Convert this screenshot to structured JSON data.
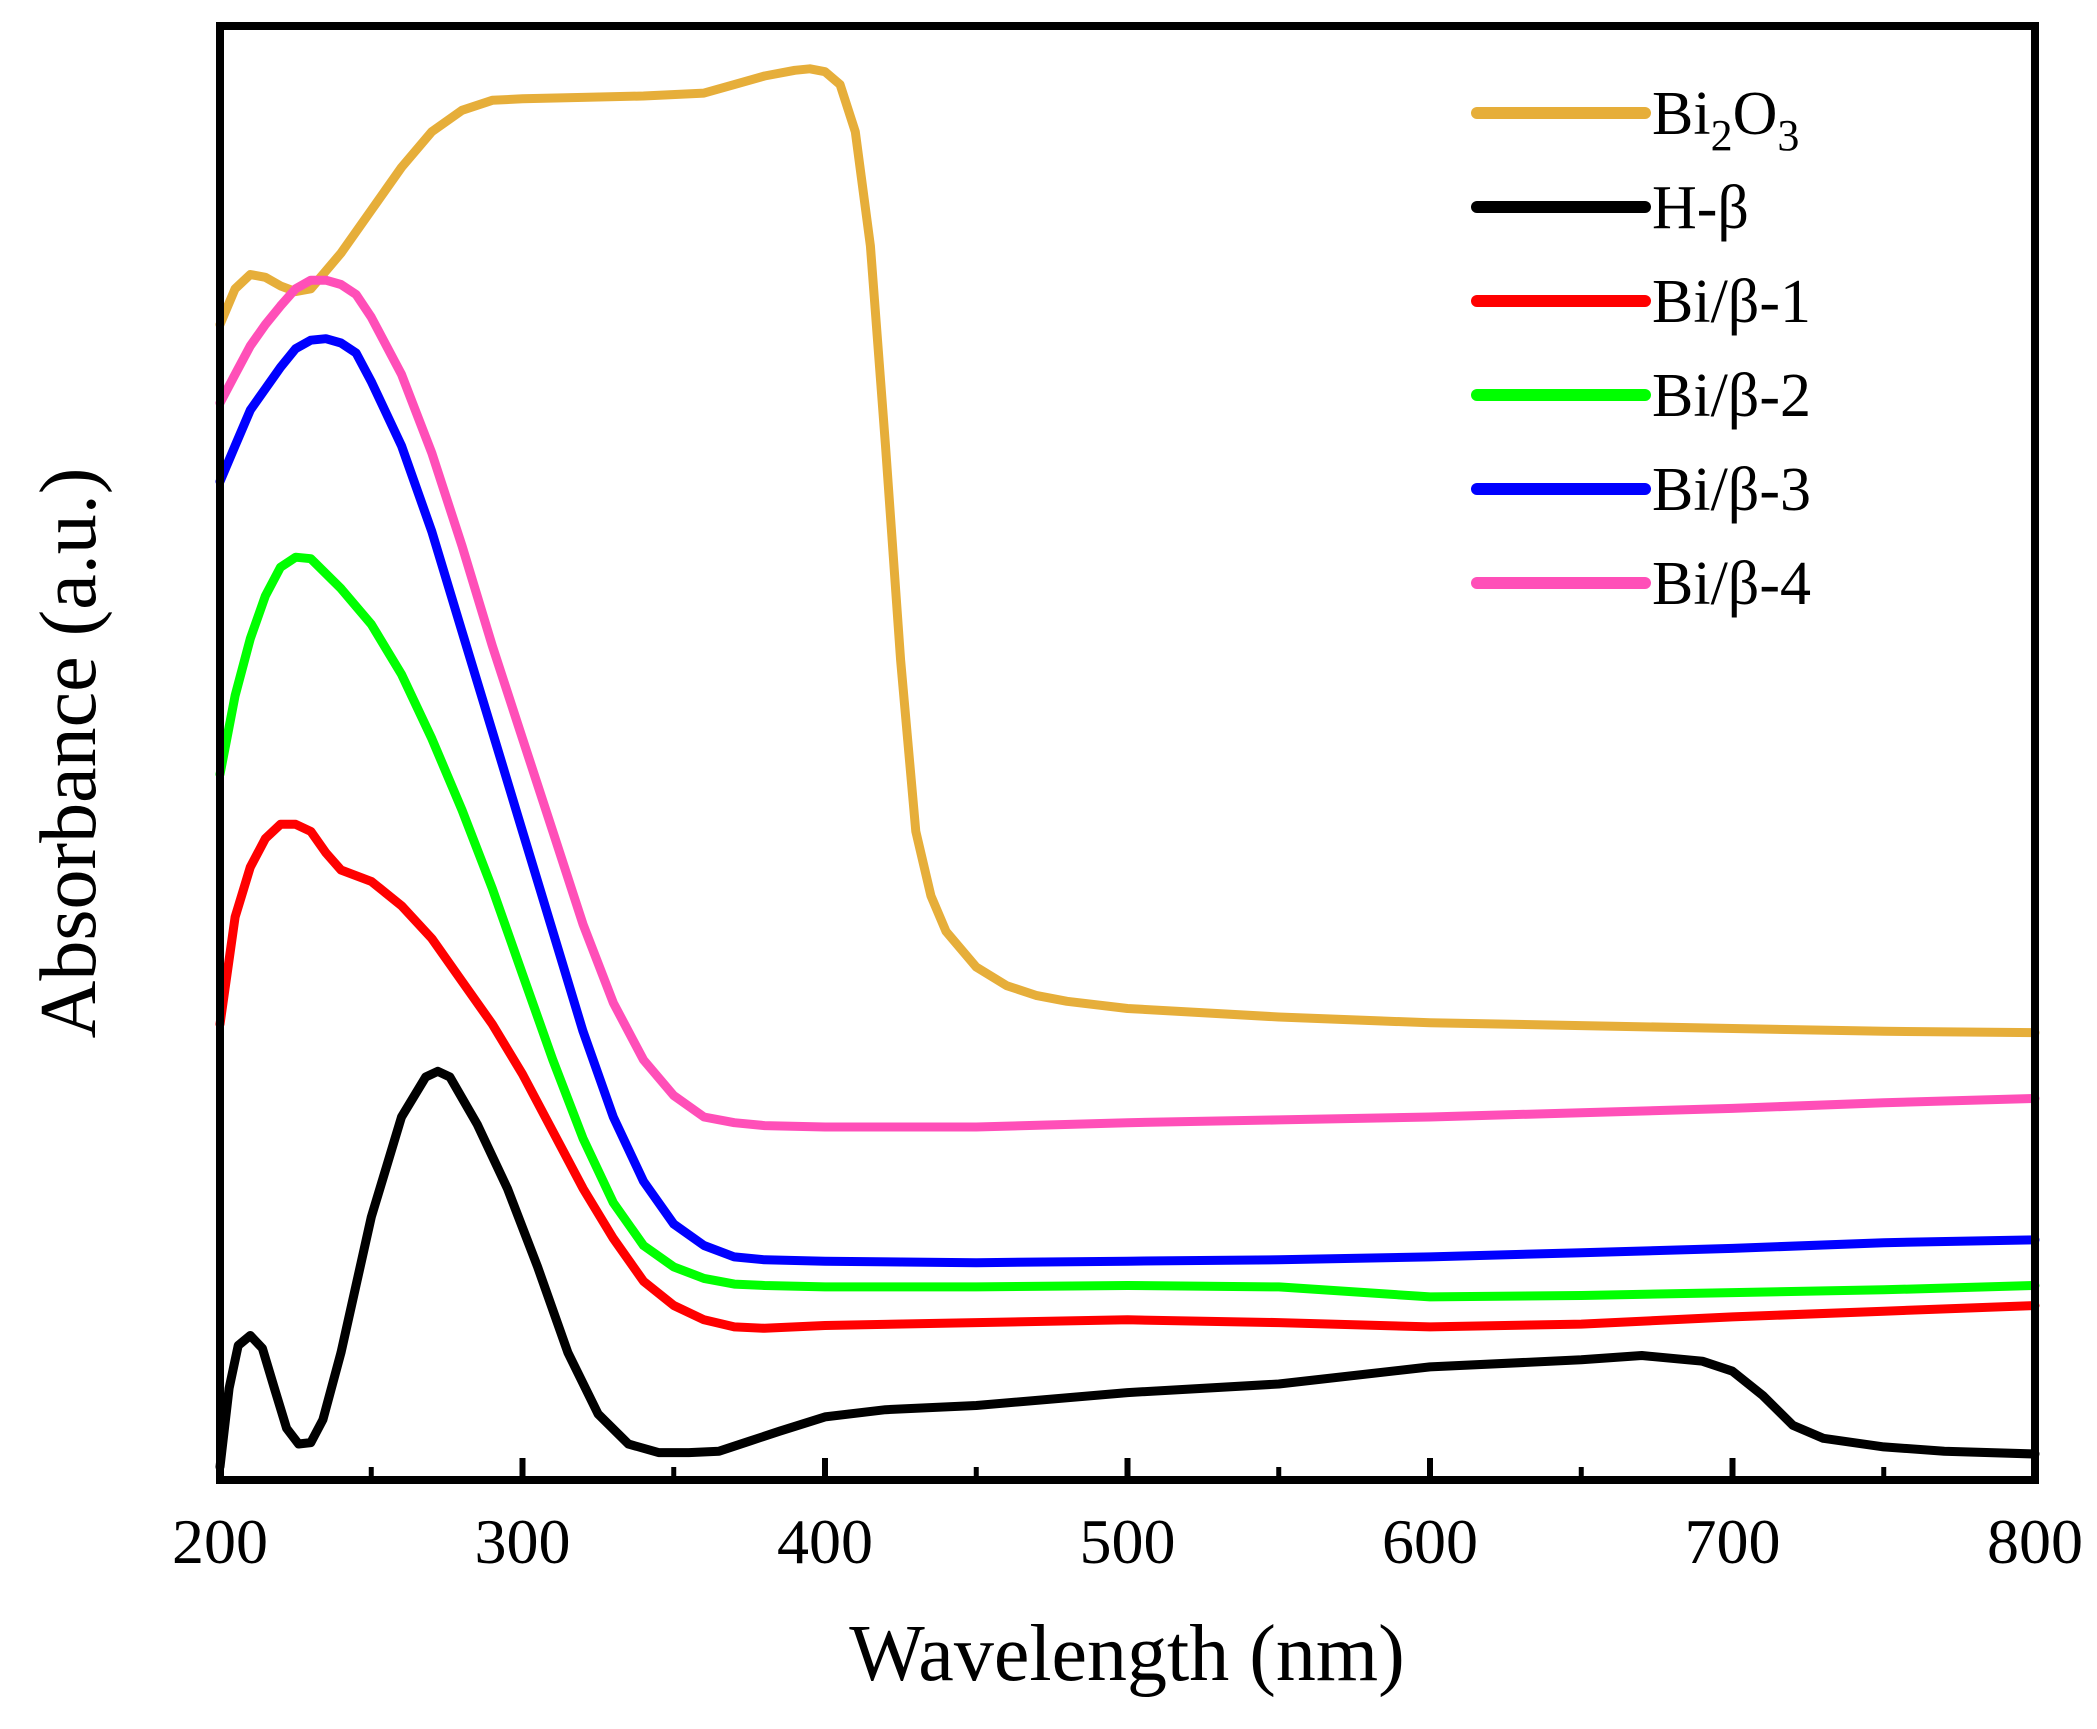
{
  "chart_data": {
    "type": "line",
    "title": "",
    "xlabel": "Wavelength (nm)",
    "ylabel": "Absorbance (a.u.)",
    "xlim": [
      200,
      800
    ],
    "ylim": [
      0,
      100
    ],
    "x_ticks": [
      "200",
      "300",
      "400",
      "500",
      "600",
      "700",
      "800"
    ],
    "y_ticks_visible": false,
    "grid": false,
    "legend_position": "top-right",
    "series": [
      {
        "name": "Bi2O3",
        "label_base": "Bi",
        "label_sub1": "2",
        "label_mid": "O",
        "label_sub2": "3",
        "color": "#E6AE3A",
        "points": [
          [
            200,
            80.5
          ],
          [
            205,
            83
          ],
          [
            210,
            84
          ],
          [
            215,
            83.8
          ],
          [
            220,
            83.2
          ],
          [
            225,
            82.8
          ],
          [
            230,
            83
          ],
          [
            240,
            85.5
          ],
          [
            250,
            88.5
          ],
          [
            260,
            91.5
          ],
          [
            270,
            94
          ],
          [
            280,
            95.5
          ],
          [
            290,
            96.2
          ],
          [
            300,
            96.3
          ],
          [
            320,
            96.4
          ],
          [
            340,
            96.5
          ],
          [
            360,
            96.7
          ],
          [
            370,
            97.3
          ],
          [
            380,
            97.9
          ],
          [
            390,
            98.3
          ],
          [
            395,
            98.4
          ],
          [
            400,
            98.2
          ],
          [
            405,
            97.3
          ],
          [
            410,
            94
          ],
          [
            415,
            86
          ],
          [
            420,
            72
          ],
          [
            425,
            57
          ],
          [
            430,
            45
          ],
          [
            435,
            40.5
          ],
          [
            440,
            38
          ],
          [
            450,
            35.5
          ],
          [
            460,
            34.2
          ],
          [
            470,
            33.5
          ],
          [
            480,
            33.1
          ],
          [
            500,
            32.6
          ],
          [
            550,
            32
          ],
          [
            600,
            31.6
          ],
          [
            650,
            31.4
          ],
          [
            700,
            31.2
          ],
          [
            750,
            31
          ],
          [
            800,
            30.9
          ]
        ]
      },
      {
        "name": "H-β",
        "color": "#000000",
        "points": [
          [
            200,
            0.5
          ],
          [
            203,
            6
          ],
          [
            206,
            9
          ],
          [
            210,
            9.7
          ],
          [
            214,
            8.8
          ],
          [
            218,
            6
          ],
          [
            222,
            3.2
          ],
          [
            226,
            2.1
          ],
          [
            230,
            2.2
          ],
          [
            234,
            3.8
          ],
          [
            240,
            8.5
          ],
          [
            250,
            18
          ],
          [
            260,
            25
          ],
          [
            268,
            27.8
          ],
          [
            272,
            28.2
          ],
          [
            276,
            27.8
          ],
          [
            285,
            24.5
          ],
          [
            295,
            20
          ],
          [
            305,
            14.5
          ],
          [
            315,
            8.5
          ],
          [
            325,
            4.2
          ],
          [
            335,
            2.1
          ],
          [
            345,
            1.5
          ],
          [
            355,
            1.5
          ],
          [
            365,
            1.6
          ],
          [
            375,
            2.3
          ],
          [
            385,
            3
          ],
          [
            400,
            4
          ],
          [
            420,
            4.5
          ],
          [
            450,
            4.8
          ],
          [
            500,
            5.7
          ],
          [
            550,
            6.3
          ],
          [
            600,
            7.5
          ],
          [
            650,
            8
          ],
          [
            670,
            8.3
          ],
          [
            690,
            7.9
          ],
          [
            700,
            7.2
          ],
          [
            710,
            5.5
          ],
          [
            720,
            3.4
          ],
          [
            730,
            2.5
          ],
          [
            750,
            1.9
          ],
          [
            770,
            1.6
          ],
          [
            800,
            1.4
          ]
        ]
      },
      {
        "name": "Bi/β-1",
        "color": "#FF0000",
        "points": [
          [
            200,
            31.5
          ],
          [
            205,
            39
          ],
          [
            210,
            42.5
          ],
          [
            215,
            44.5
          ],
          [
            220,
            45.5
          ],
          [
            225,
            45.5
          ],
          [
            230,
            45
          ],
          [
            235,
            43.5
          ],
          [
            240,
            42.3
          ],
          [
            250,
            41.5
          ],
          [
            260,
            39.8
          ],
          [
            270,
            37.5
          ],
          [
            280,
            34.5
          ],
          [
            290,
            31.5
          ],
          [
            300,
            28
          ],
          [
            310,
            24
          ],
          [
            320,
            20
          ],
          [
            330,
            16.5
          ],
          [
            340,
            13.5
          ],
          [
            350,
            11.8
          ],
          [
            360,
            10.8
          ],
          [
            370,
            10.3
          ],
          [
            380,
            10.2
          ],
          [
            400,
            10.4
          ],
          [
            450,
            10.6
          ],
          [
            500,
            10.8
          ],
          [
            550,
            10.6
          ],
          [
            600,
            10.3
          ],
          [
            650,
            10.5
          ],
          [
            700,
            11
          ],
          [
            750,
            11.4
          ],
          [
            800,
            11.8
          ]
        ]
      },
      {
        "name": "Bi/β-2",
        "color": "#00FF00",
        "points": [
          [
            200,
            49
          ],
          [
            205,
            54.5
          ],
          [
            210,
            58.5
          ],
          [
            215,
            61.5
          ],
          [
            220,
            63.5
          ],
          [
            225,
            64.2
          ],
          [
            230,
            64.1
          ],
          [
            240,
            62
          ],
          [
            250,
            59.5
          ],
          [
            260,
            56
          ],
          [
            270,
            51.5
          ],
          [
            280,
            46.5
          ],
          [
            290,
            41
          ],
          [
            300,
            35
          ],
          [
            310,
            29
          ],
          [
            320,
            23.5
          ],
          [
            330,
            19
          ],
          [
            340,
            16
          ],
          [
            350,
            14.5
          ],
          [
            360,
            13.7
          ],
          [
            370,
            13.3
          ],
          [
            380,
            13.2
          ],
          [
            400,
            13.1
          ],
          [
            450,
            13.1
          ],
          [
            500,
            13.2
          ],
          [
            550,
            13.1
          ],
          [
            600,
            12.4
          ],
          [
            650,
            12.5
          ],
          [
            700,
            12.7
          ],
          [
            750,
            12.9
          ],
          [
            800,
            13.2
          ]
        ]
      },
      {
        "name": "Bi/β-3",
        "color": "#0000FF",
        "points": [
          [
            200,
            69.5
          ],
          [
            205,
            72
          ],
          [
            210,
            74.5
          ],
          [
            215,
            76
          ],
          [
            220,
            77.5
          ],
          [
            225,
            78.8
          ],
          [
            230,
            79.4
          ],
          [
            235,
            79.5
          ],
          [
            240,
            79.2
          ],
          [
            245,
            78.5
          ],
          [
            250,
            76.5
          ],
          [
            260,
            72
          ],
          [
            270,
            66
          ],
          [
            280,
            59
          ],
          [
            290,
            52
          ],
          [
            300,
            45
          ],
          [
            310,
            38
          ],
          [
            320,
            31
          ],
          [
            330,
            25
          ],
          [
            340,
            20.5
          ],
          [
            350,
            17.5
          ],
          [
            360,
            16
          ],
          [
            370,
            15.2
          ],
          [
            380,
            15
          ],
          [
            400,
            14.9
          ],
          [
            450,
            14.8
          ],
          [
            500,
            14.9
          ],
          [
            550,
            15
          ],
          [
            600,
            15.2
          ],
          [
            650,
            15.5
          ],
          [
            700,
            15.8
          ],
          [
            750,
            16.2
          ],
          [
            800,
            16.4
          ]
        ]
      },
      {
        "name": "Bi/β-4",
        "color": "#FF4FB8",
        "points": [
          [
            200,
            75
          ],
          [
            205,
            77
          ],
          [
            210,
            79
          ],
          [
            215,
            80.5
          ],
          [
            220,
            81.8
          ],
          [
            225,
            83
          ],
          [
            230,
            83.6
          ],
          [
            235,
            83.6
          ],
          [
            240,
            83.3
          ],
          [
            245,
            82.6
          ],
          [
            250,
            81
          ],
          [
            260,
            77
          ],
          [
            270,
            71.5
          ],
          [
            280,
            65
          ],
          [
            290,
            58
          ],
          [
            300,
            51.5
          ],
          [
            310,
            45
          ],
          [
            320,
            38.5
          ],
          [
            330,
            33
          ],
          [
            340,
            29
          ],
          [
            350,
            26.5
          ],
          [
            360,
            25
          ],
          [
            370,
            24.6
          ],
          [
            380,
            24.4
          ],
          [
            400,
            24.3
          ],
          [
            450,
            24.3
          ],
          [
            500,
            24.6
          ],
          [
            550,
            24.8
          ],
          [
            600,
            25
          ],
          [
            650,
            25.3
          ],
          [
            700,
            25.6
          ],
          [
            750,
            26
          ],
          [
            800,
            26.3
          ]
        ]
      }
    ]
  }
}
